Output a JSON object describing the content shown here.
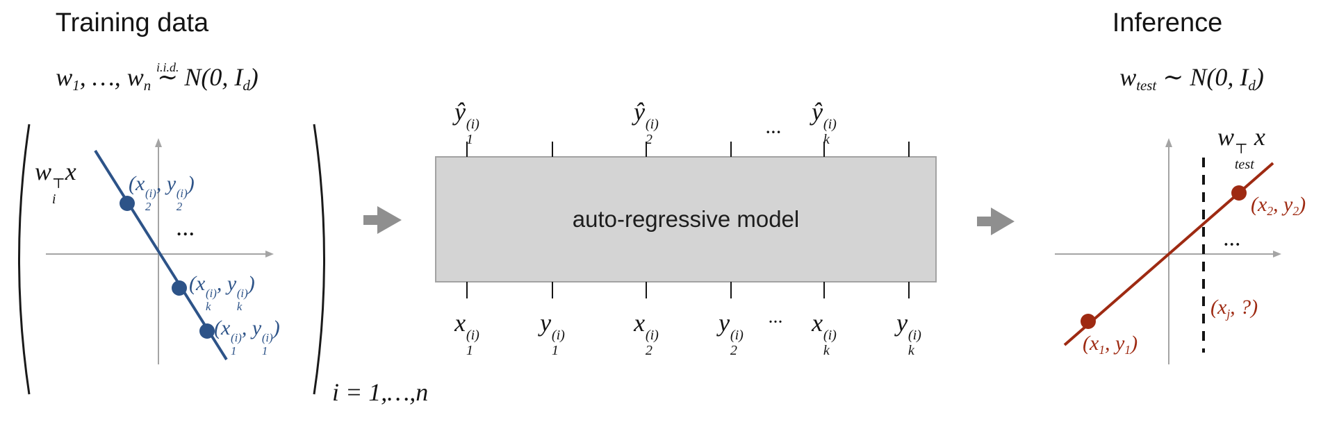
{
  "colors": {
    "blue": "#2d5388",
    "red": "#9e2a12",
    "ink": "#141414",
    "axis_gray": "#a4a4a4",
    "arrow_gray": "#8f8f8f",
    "box_fill": "#d4d4d4",
    "box_border": "#a2a2a2"
  },
  "training": {
    "title": "Training data",
    "prior": [
      {
        "t": "w",
        "sub": "1"
      },
      {
        "t": ", …, "
      },
      {
        "t": "w",
        "sub": "n"
      },
      {
        "t": " "
      },
      {
        "t": "∼",
        "over": "i.i.d."
      },
      {
        "t": " N(0, "
      },
      {
        "t": "I",
        "sub": "d"
      },
      {
        "t": ")"
      }
    ],
    "line_label": [
      {
        "t": "w",
        "sub": "i",
        "sup": "⊤"
      },
      {
        "t": "x"
      }
    ],
    "point_x2": [
      {
        "t": "("
      },
      {
        "t": "x",
        "sub": "2",
        "sup": "(i)"
      },
      {
        "t": ", "
      },
      {
        "t": "y",
        "sub": "2",
        "sup": "(i)"
      },
      {
        "t": ")"
      }
    ],
    "point_xk": [
      {
        "t": "("
      },
      {
        "t": "x",
        "sub": "k",
        "sup": "(i)"
      },
      {
        "t": ", "
      },
      {
        "t": "y",
        "sub": "k",
        "sup": "(i)"
      },
      {
        "t": ")"
      }
    ],
    "point_x1": [
      {
        "t": "("
      },
      {
        "t": "x",
        "sub": "1",
        "sup": "(i)"
      },
      {
        "t": ", "
      },
      {
        "t": "y",
        "sub": "1",
        "sup": "(i)"
      },
      {
        "t": ")"
      }
    ],
    "ellipsis": "...",
    "index_label": [
      {
        "t": "i = 1,…,n"
      }
    ]
  },
  "model": {
    "label": "auto-regressive model",
    "outputs": [
      [
        {
          "t": "ŷ",
          "sub": "1",
          "sup": "(i)"
        }
      ],
      [
        {
          "t": "ŷ",
          "sub": "2",
          "sup": "(i)"
        }
      ],
      [
        {
          "t": "ŷ",
          "sub": "k",
          "sup": "(i)"
        }
      ]
    ],
    "output_ellipsis": "...",
    "inputs": [
      [
        {
          "t": "x",
          "sub": "1",
          "sup": "(i)"
        }
      ],
      [
        {
          "t": "y",
          "sub": "1",
          "sup": "(i)"
        }
      ],
      [
        {
          "t": "x",
          "sub": "2",
          "sup": "(i)"
        }
      ],
      [
        {
          "t": "y",
          "sub": "2",
          "sup": "(i)"
        }
      ],
      [
        {
          "t": "x",
          "sub": "k",
          "sup": "(i)"
        }
      ],
      [
        {
          "t": "y",
          "sub": "k",
          "sup": "(i)"
        }
      ]
    ],
    "input_ellipsis": "..."
  },
  "inference": {
    "title": "Inference",
    "prior": [
      {
        "t": "w",
        "sub": "test"
      },
      {
        "t": " ∼ N(0, "
      },
      {
        "t": "I",
        "sub": "d"
      },
      {
        "t": ")"
      }
    ],
    "line_label": [
      {
        "t": "w",
        "sub": "test",
        "sup": "⊤"
      },
      {
        "t": "x"
      }
    ],
    "point_x2": [
      {
        "t": "("
      },
      {
        "t": "x",
        "sub": "2"
      },
      {
        "t": ", "
      },
      {
        "t": "y",
        "sub": "2"
      },
      {
        "t": ")"
      }
    ],
    "point_x1": [
      {
        "t": "("
      },
      {
        "t": "x",
        "sub": "1"
      },
      {
        "t": ", "
      },
      {
        "t": "y",
        "sub": "1"
      },
      {
        "t": ")"
      }
    ],
    "query_label": [
      {
        "t": "("
      },
      {
        "t": "x",
        "sub": "j"
      },
      {
        "t": ", ?)"
      }
    ],
    "ellipsis": "..."
  }
}
